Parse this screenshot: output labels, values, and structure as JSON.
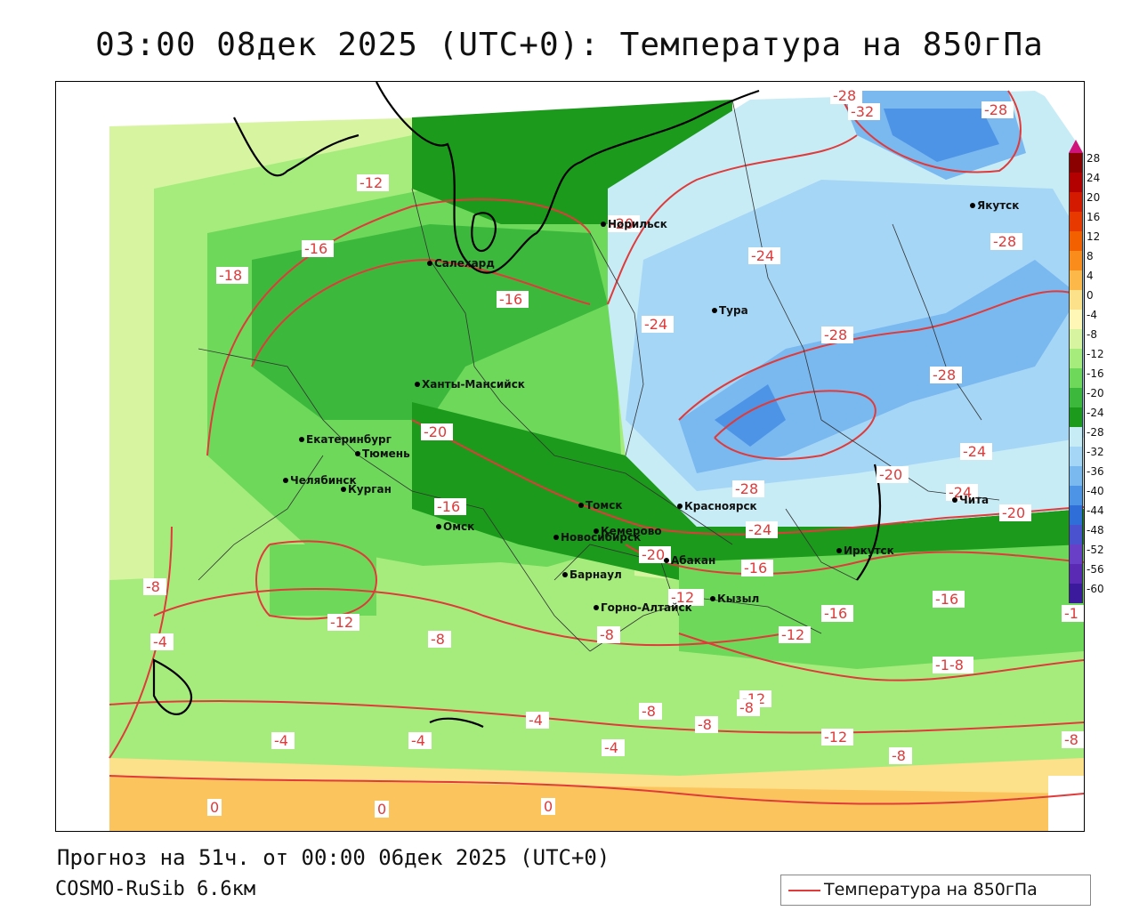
{
  "title": "03:00 08дек 2025 (UTC+0): Температура на 850гПа",
  "footer": {
    "forecast": "Прогноз на 51ч. от 00:00 06дек 2025 (UTC+0)",
    "model": "COSMO-RuSib 6.6км"
  },
  "legend": {
    "label": "Температура на 850гПа",
    "color": "#e03a3a"
  },
  "colorbar": {
    "labels": [
      "28",
      "24",
      "20",
      "16",
      "12",
      "8",
      "4",
      "0",
      "-4",
      "-8",
      "-12",
      "-16",
      "-20",
      "-24",
      "-28",
      "-32",
      "-36",
      "-40",
      "-44",
      "-48",
      "-52",
      "-56",
      "-60"
    ],
    "colors": [
      "#8b0000",
      "#b30000",
      "#d41a00",
      "#e83a00",
      "#f36000",
      "#f98c1a",
      "#fdb84a",
      "#fde08a",
      "#fff7b5",
      "#d7f5a0",
      "#a6ec7d",
      "#6dd85a",
      "#3cb83c",
      "#1b9a1b",
      "#c7ecf6",
      "#a6d6f6",
      "#7ab8f0",
      "#4d94e6",
      "#2f6ed8",
      "#4a52d0",
      "#6a3fc8",
      "#5a2ab4",
      "#3b1a9c"
    ]
  },
  "cities": [
    {
      "name": "Норильск"
    },
    {
      "name": "Якутск"
    },
    {
      "name": "Салехард"
    },
    {
      "name": "Тура"
    },
    {
      "name": "Ханты-Мансийск"
    },
    {
      "name": "Екатеринбург"
    },
    {
      "name": "Тюмень"
    },
    {
      "name": "Челябинск"
    },
    {
      "name": "Курган"
    },
    {
      "name": "Омск"
    },
    {
      "name": "Томск"
    },
    {
      "name": "Красноярск"
    },
    {
      "name": "Новосибирск"
    },
    {
      "name": "Кемерово"
    },
    {
      "name": "Абакан"
    },
    {
      "name": "Иркутск"
    },
    {
      "name": "Барнаул"
    },
    {
      "name": "Кызыл"
    },
    {
      "name": "Горно-Алтайск"
    },
    {
      "name": "Чита"
    }
  ],
  "isotherm_labels": [
    "-28",
    "-32",
    "-28",
    "-12",
    "-20",
    "-16",
    "-24",
    "-28",
    "-16",
    "-18",
    "-24",
    "-28",
    "-28",
    "-20",
    "-20",
    "-24",
    "-28",
    "-24",
    "-16",
    "-12",
    "-20",
    "-24",
    "-20",
    "-16",
    "-8",
    "-12",
    "-12",
    "-16",
    "-16",
    "-12",
    "-1",
    "-4",
    "-8",
    "-8",
    "-1-8",
    "-12",
    "-8",
    "-8",
    "-4",
    "-4",
    "-4",
    "-12",
    "-4",
    "-8",
    "-8",
    "-8",
    "0",
    "0",
    "0"
  ]
}
